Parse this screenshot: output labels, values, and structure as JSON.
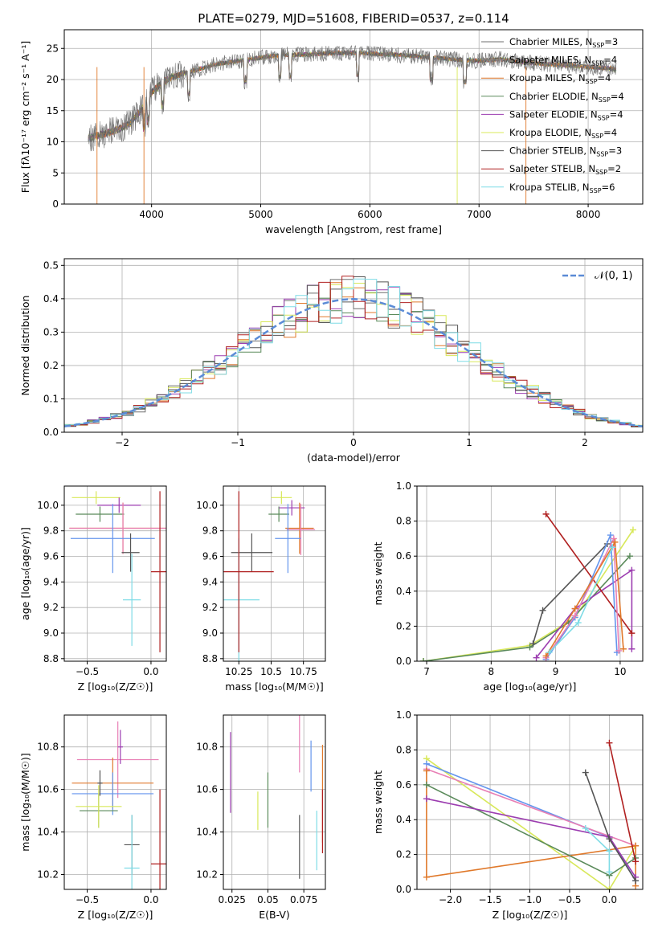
{
  "title": "PLATE=0279, MJD=51608, FIBERID=0537, z=0.114",
  "colors": {
    "chabrier_miles": "#6f6f6f",
    "salpeter_miles": "#8a8a8a",
    "kroupa_miles": "#e0792b",
    "chabrier_elodie": "#5a8a5a",
    "salpeter_elodie": "#9c3db0",
    "kroupa_elodie": "#d8e85a",
    "chabrier_stelib": "#555555",
    "salpeter_stelib": "#b02020",
    "kroupa_stelib": "#7fdce6",
    "miles_blue": "#6495ed",
    "miles_pink": "#e87fb5"
  },
  "chart_data": [
    {
      "type": "line",
      "title": "PLATE=0279, MJD=51608, FIBERID=0537, z=0.114",
      "xlabel": "wavelength [Angstrom, rest frame]",
      "ylabel": "Flux [fλ10⁻¹⁷ erg cm⁻² s⁻¹ A⁻¹]",
      "xlim": [
        3200,
        8500
      ],
      "ylim": [
        0,
        28
      ],
      "xticks": [
        4000,
        5000,
        6000,
        7000,
        8000
      ],
      "yticks": [
        0,
        5,
        10,
        15,
        20,
        25
      ],
      "legend_position": "right",
      "spectrum_nodes": {
        "x": [
          3400,
          3500,
          3600,
          3700,
          3800,
          3900,
          4000,
          4100,
          4200,
          4300,
          4400,
          4500,
          4600,
          4800,
          5000,
          5200,
          5400,
          5600,
          5800,
          6000,
          6200,
          6400,
          6600,
          6800,
          7000,
          7200,
          7400,
          7600,
          7800,
          8000,
          8200,
          8260
        ],
        "y": [
          10.5,
          11,
          11.5,
          12,
          13,
          15,
          18,
          19.5,
          20.5,
          21,
          21.5,
          22,
          22.5,
          23,
          23.5,
          24,
          24,
          24.2,
          24.3,
          24.2,
          24,
          23.8,
          23.5,
          23.2,
          23,
          23.3,
          22.8,
          22.5,
          22.3,
          22,
          21.8,
          21.5
        ]
      },
      "legend": [
        {
          "label": "Chabrier MILES, N",
          "sub": "SSP",
          "suffix": "=3"
        },
        {
          "label": "Salpeter MILES, N",
          "sub": "SSP",
          "suffix": "=4"
        },
        {
          "label": "Kroupa MILES, N",
          "sub": "SSP",
          "suffix": "=4"
        },
        {
          "label": "Chabrier ELODIE, N",
          "sub": "SSP",
          "suffix": "=4"
        },
        {
          "label": "Salpeter ELODIE, N",
          "sub": "SSP",
          "suffix": "=4"
        },
        {
          "label": "Kroupa ELODIE, N",
          "sub": "SSP",
          "suffix": "=4"
        },
        {
          "label": "Chabrier STELIB, N",
          "sub": "SSP",
          "suffix": "=3"
        },
        {
          "label": "Salpeter STELIB, N",
          "sub": "SSP",
          "suffix": "=2"
        },
        {
          "label": "Kroupa STELIB, N",
          "sub": "SSP",
          "suffix": "=6"
        }
      ]
    },
    {
      "type": "histogram",
      "xlabel": "(data-model)/error",
      "ylabel": "Normed distribution",
      "xlim": [
        -2.5,
        2.5
      ],
      "ylim": [
        0,
        0.52
      ],
      "xticks": [
        -2,
        -1,
        0,
        1,
        2
      ],
      "xtick_labels": [
        "−2",
        "−1",
        "0",
        "1",
        "2"
      ],
      "yticks": [
        0.0,
        0.1,
        0.2,
        0.3,
        0.4,
        0.5
      ],
      "legend": "𝒩(0, 1)",
      "gaussian": {
        "mean": 0,
        "sigma": 1
      }
    },
    {
      "type": "scatter",
      "xlabel": "Z [log₁₀(Z/Z☉)]",
      "ylabel": "age  [log₁₀(age/yr)]",
      "xlim": [
        -0.68,
        0.12
      ],
      "ylim": [
        8.78,
        10.15
      ],
      "xticks": [
        -0.5,
        0.0
      ],
      "xtick_labels": [
        "−0.5",
        "0.0"
      ],
      "yticks": [
        8.8,
        9.0,
        9.2,
        9.4,
        9.6,
        9.8,
        10.0
      ],
      "points": [
        {
          "x": -0.43,
          "y": 10.06,
          "xe": 0.19,
          "ye": 0.05,
          "c": "kroupa_elodie"
        },
        {
          "x": -0.4,
          "y": 9.93,
          "xe": 0.19,
          "ye": 0.06,
          "c": "chabrier_elodie"
        },
        {
          "x": -0.25,
          "y": 10.0,
          "xe": 0.17,
          "ye": 0.06,
          "c": "salpeter_elodie"
        },
        {
          "x": -0.22,
          "y": 9.82,
          "xe": 0.42,
          "ye": 0.2,
          "c": "kroupa_miles"
        },
        {
          "x": -0.22,
          "y": 9.82,
          "xe": 0.42,
          "ye": 0.2,
          "c": "miles_pink"
        },
        {
          "x": -0.3,
          "y": 9.74,
          "xe": 0.33,
          "ye": 0.27,
          "c": "miles_blue"
        },
        {
          "x": -0.16,
          "y": 9.63,
          "xe": 0.07,
          "ye": 0.15,
          "c": "chabrier_stelib"
        },
        {
          "x": -0.15,
          "y": 9.26,
          "xe": 0.07,
          "ye": 0.36,
          "c": "kroupa_stelib"
        },
        {
          "x": 0.07,
          "y": 9.48,
          "xe": 0.07,
          "ye": 0.63,
          "c": "salpeter_stelib"
        }
      ]
    },
    {
      "type": "scatter",
      "xlabel": "mass [log₁₀(M/M☉)]",
      "xlim": [
        10.13,
        10.92
      ],
      "ylim": [
        8.78,
        10.15
      ],
      "xticks": [
        10.25,
        10.5,
        10.75
      ],
      "yticks": [
        8.8,
        9.0,
        9.2,
        9.4,
        9.6,
        9.8,
        10.0
      ],
      "points": [
        {
          "x": 10.58,
          "y": 10.06,
          "xe": 0.08,
          "ye": 0.05,
          "c": "kroupa_elodie"
        },
        {
          "x": 10.56,
          "y": 9.93,
          "xe": 0.08,
          "ye": 0.06,
          "c": "chabrier_elodie"
        },
        {
          "x": 10.66,
          "y": 9.98,
          "xe": 0.1,
          "ye": 0.06,
          "c": "salpeter_elodie"
        },
        {
          "x": 10.72,
          "y": 9.82,
          "xe": 0.11,
          "ye": 0.2,
          "c": "kroupa_miles"
        },
        {
          "x": 10.73,
          "y": 9.81,
          "xe": 0.11,
          "ye": 0.2,
          "c": "miles_pink"
        },
        {
          "x": 10.63,
          "y": 9.74,
          "xe": 0.1,
          "ye": 0.27,
          "c": "miles_blue"
        },
        {
          "x": 10.35,
          "y": 9.63,
          "xe": 0.16,
          "ye": 0.15,
          "c": "chabrier_stelib"
        },
        {
          "x": 10.25,
          "y": 9.26,
          "xe": 0.16,
          "ye": 0.48,
          "c": "kroupa_stelib"
        },
        {
          "x": 10.25,
          "y": 9.48,
          "xe": 0.27,
          "ye": 0.63,
          "c": "salpeter_stelib"
        }
      ]
    },
    {
      "type": "line",
      "xlabel": "age  [log₁₀(age/yr)]",
      "ylabel": "mass weight",
      "xlim": [
        6.85,
        10.35
      ],
      "ylim": [
        0,
        1
      ],
      "xticks": [
        7,
        8,
        9,
        10
      ],
      "yticks": [
        0.0,
        0.2,
        0.4,
        0.6,
        0.8,
        1.0
      ],
      "series": [
        {
          "c": "kroupa_elodie",
          "x": [
            6.95,
            8.6,
            9.3,
            10.2
          ],
          "y": [
            0.0,
            0.09,
            0.25,
            0.75
          ]
        },
        {
          "c": "chabrier_elodie",
          "x": [
            6.95,
            8.6,
            9.2,
            10.15
          ],
          "y": [
            0.0,
            0.08,
            0.22,
            0.6
          ]
        },
        {
          "c": "salpeter_elodie",
          "x": [
            8.7,
            9.3,
            10.18,
            10.18
          ],
          "y": [
            0.02,
            0.3,
            0.52,
            0.07
          ]
        },
        {
          "c": "chabrier_stelib",
          "x": [
            8.65,
            8.8,
            9.8
          ],
          "y": [
            0.1,
            0.29,
            0.67
          ]
        },
        {
          "c": "salpeter_stelib",
          "x": [
            8.85,
            10.18
          ],
          "y": [
            0.84,
            0.16
          ]
        },
        {
          "c": "miles_blue",
          "x": [
            8.85,
            9.3,
            9.85,
            9.95
          ],
          "y": [
            0.01,
            0.25,
            0.72,
            0.05
          ]
        },
        {
          "c": "miles_pink",
          "x": [
            8.85,
            9.3,
            9.9,
            9.98
          ],
          "y": [
            0.02,
            0.26,
            0.7,
            0.06
          ]
        },
        {
          "c": "kroupa_miles",
          "x": [
            8.85,
            9.3,
            9.92,
            10.05
          ],
          "y": [
            0.03,
            0.3,
            0.68,
            0.07
          ]
        },
        {
          "c": "kroupa_stelib",
          "x": [
            8.9,
            9.35,
            9.88
          ],
          "y": [
            0.05,
            0.22,
            0.65
          ]
        }
      ]
    },
    {
      "type": "scatter",
      "xlabel": "Z [log₁₀(Z/Z☉)]",
      "ylabel": "mass [log₁₀(M/M☉)]",
      "xlim": [
        -0.68,
        0.12
      ],
      "ylim": [
        10.13,
        10.95
      ],
      "xticks": [
        -0.5,
        0.0
      ],
      "xtick_labels": [
        "−0.5",
        "0.0"
      ],
      "yticks": [
        10.2,
        10.4,
        10.6,
        10.8
      ],
      "points": [
        {
          "x": -0.26,
          "y": 10.74,
          "xe": 0.32,
          "ye": 0.18,
          "c": "miles_pink"
        },
        {
          "x": -0.24,
          "y": 10.8,
          "xe": 0.02,
          "ye": 0.08,
          "c": "salpeter_elodie"
        },
        {
          "x": -0.3,
          "y": 10.63,
          "xe": 0.32,
          "ye": 0.12,
          "c": "kroupa_miles"
        },
        {
          "x": -0.3,
          "y": 10.58,
          "xe": 0.32,
          "ye": 0.1,
          "c": "miles_blue"
        },
        {
          "x": -0.41,
          "y": 10.5,
          "xe": 0.15,
          "ye": 0.08,
          "c": "chabrier_elodie"
        },
        {
          "x": -0.41,
          "y": 10.52,
          "xe": 0.18,
          "ye": 0.1,
          "c": "kroupa_elodie"
        },
        {
          "x": -0.4,
          "y": 10.63,
          "xe": 0.02,
          "ye": 0.06,
          "c": "chabrier_stelib"
        },
        {
          "x": -0.15,
          "y": 10.34,
          "xe": 0.06,
          "ye": 0.14,
          "c": "chabrier_stelib"
        },
        {
          "x": -0.15,
          "y": 10.23,
          "xe": 0.06,
          "ye": 0.25,
          "c": "kroupa_stelib"
        },
        {
          "x": 0.07,
          "y": 10.25,
          "xe": 0.07,
          "ye": 0.35,
          "c": "salpeter_stelib"
        }
      ]
    },
    {
      "type": "scatter",
      "xlabel": "E(B-V)",
      "xlim": [
        0.019,
        0.09
      ],
      "ylim": [
        10.13,
        10.95
      ],
      "xticks": [
        0.025,
        0.05,
        0.075
      ],
      "yticks": [
        10.2,
        10.4,
        10.6,
        10.8
      ],
      "points": [
        {
          "x": 0.024,
          "y": 10.68,
          "ye": 0.19,
          "c": "salpeter_elodie"
        },
        {
          "x": 0.043,
          "y": 10.5,
          "ye": 0.09,
          "c": "kroupa_elodie"
        },
        {
          "x": 0.05,
          "y": 10.55,
          "ye": 0.13,
          "c": "chabrier_elodie"
        },
        {
          "x": 0.072,
          "y": 10.82,
          "ye": 0.14,
          "c": "miles_pink"
        },
        {
          "x": 0.072,
          "y": 10.33,
          "ye": 0.15,
          "c": "chabrier_stelib"
        },
        {
          "x": 0.08,
          "y": 10.71,
          "ye": 0.12,
          "c": "miles_blue"
        },
        {
          "x": 0.084,
          "y": 10.36,
          "ye": 0.14,
          "c": "kroupa_stelib"
        },
        {
          "x": 0.088,
          "y": 10.58,
          "ye": 0.23,
          "c": "kroupa_miles"
        },
        {
          "x": 0.088,
          "y": 10.45,
          "ye": 0.15,
          "c": "salpeter_stelib"
        }
      ]
    },
    {
      "type": "line",
      "xlabel": "Z [log₁₀(Z/Z☉)]",
      "ylabel": "mass weight",
      "xlim": [
        -2.42,
        0.42
      ],
      "ylim": [
        0,
        1
      ],
      "xticks": [
        -2.0,
        -1.5,
        -1.0,
        -0.5,
        0.0
      ],
      "xtick_labels": [
        "−2.0",
        "−1.5",
        "−1.0",
        "−0.5",
        "0.0"
      ],
      "yticks": [
        0.0,
        0.2,
        0.4,
        0.6,
        0.8,
        1.0
      ],
      "series": [
        {
          "c": "kroupa_elodie",
          "x": [
            -2.3,
            0.0,
            0.33
          ],
          "y": [
            0.75,
            0.0,
            0.25
          ]
        },
        {
          "c": "miles_blue",
          "x": [
            -2.3,
            0.0,
            0.33
          ],
          "y": [
            0.72,
            0.3,
            0.05
          ]
        },
        {
          "c": "miles_pink",
          "x": [
            -2.3,
            0.33
          ],
          "y": [
            0.69,
            0.25
          ]
        },
        {
          "c": "kroupa_miles",
          "x": [
            -2.3,
            -2.3,
            0.33,
            0.33
          ],
          "y": [
            0.68,
            0.07,
            0.25,
            0.02
          ]
        },
        {
          "c": "chabrier_elodie",
          "x": [
            -2.3,
            0.0,
            0.33
          ],
          "y": [
            0.6,
            0.08,
            0.18
          ]
        },
        {
          "c": "salpeter_elodie",
          "x": [
            -2.3,
            0.0,
            0.33
          ],
          "y": [
            0.52,
            0.3,
            0.07
          ]
        },
        {
          "c": "chabrier_stelib",
          "x": [
            -0.3,
            0.0,
            0.33
          ],
          "y": [
            0.67,
            0.29,
            0.05
          ]
        },
        {
          "c": "salpeter_stelib",
          "x": [
            0.0,
            0.33
          ],
          "y": [
            0.84,
            0.16
          ]
        },
        {
          "c": "kroupa_stelib",
          "x": [
            -0.3,
            0.0,
            0.0
          ],
          "y": [
            0.35,
            0.22,
            0.1
          ]
        }
      ]
    }
  ]
}
